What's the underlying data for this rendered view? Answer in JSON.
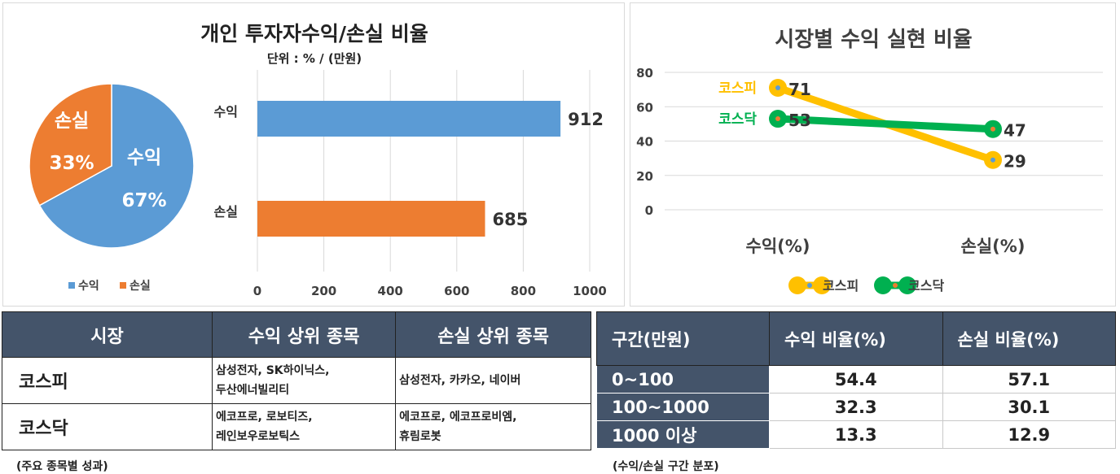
{
  "colors": {
    "blue": "#5b9bd5",
    "orange": "#ed7d31",
    "yellow": "#ffc000",
    "green": "#00b050",
    "header": "#44546a"
  },
  "pie": {
    "title": "개인 투자자수익/손실 비율",
    "subtitle": "단위 : % / (만원)",
    "slices": [
      {
        "label": "수익",
        "pct": "67%",
        "value": 67
      },
      {
        "label": "손실",
        "pct": "33%",
        "value": 33
      }
    ],
    "legend": [
      "수익",
      "손실"
    ]
  },
  "chart_data": [
    {
      "type": "pie",
      "categories": [
        "수익",
        "손실"
      ],
      "values": [
        67,
        33
      ]
    },
    {
      "type": "bar",
      "orientation": "horizontal",
      "categories": [
        "수익",
        "손실"
      ],
      "values": [
        912,
        685
      ],
      "xlim": [
        0,
        1000
      ],
      "ticks": [
        "0",
        "200",
        "400",
        "600",
        "800",
        "1000"
      ],
      "value_labels": [
        "912",
        "685"
      ]
    },
    {
      "type": "line",
      "title": "시장별 수익 실현 비율",
      "categories": [
        "수익(%)",
        "손실(%)"
      ],
      "ylim": [
        0,
        80
      ],
      "ticks": [
        "0",
        "20",
        "40",
        "60",
        "80"
      ],
      "series": [
        {
          "name": "코스피",
          "values": [
            71,
            29
          ],
          "labels": [
            "71",
            "29"
          ]
        },
        {
          "name": "코스닥",
          "values": [
            53,
            47
          ],
          "labels": [
            "53",
            "47"
          ]
        }
      ],
      "legend_position": "bottom"
    }
  ],
  "table1": {
    "headers": [
      "시장",
      "수익 상위 종목",
      "손실 상위 종목"
    ],
    "rows": [
      {
        "market": "코스피",
        "gain": [
          "삼성전자, SK하이닉스,",
          "두산에너빌리티"
        ],
        "loss": [
          "삼성전자, 카카오, 네이버"
        ]
      },
      {
        "market": "코스닥",
        "gain": [
          "에코프로, 로보티즈,",
          "레인보우로보틱스"
        ],
        "loss": [
          "에코프로, 에코프로비엠,",
          "휴림로봇"
        ]
      }
    ],
    "caption": "(주요 종목별 성과)"
  },
  "table2": {
    "headers": [
      "구간(만원)",
      "수익 비율(%)",
      "손실 비율(%)"
    ],
    "rows": [
      [
        "0~100",
        "54.4",
        "57.1"
      ],
      [
        "100~1000",
        "32.3",
        "30.1"
      ],
      [
        "1000 이상",
        "13.3",
        "12.9"
      ]
    ],
    "caption": "(수익/손실 구간 분포)"
  }
}
